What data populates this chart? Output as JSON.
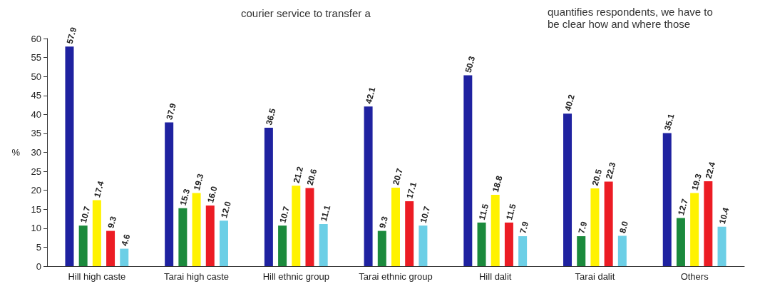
{
  "chart_data": {
    "type": "bar",
    "ylabel": "%",
    "categories": [
      "Hill high caste",
      "Tarai high caste",
      "Hill ethnic group",
      "Tarai ethnic group",
      "Hill dalit",
      "Tarai dalit",
      "Others"
    ],
    "series": [
      {
        "color": "#1f22a0",
        "values": [
          57.9,
          37.9,
          36.5,
          42.1,
          50.3,
          40.2,
          35.1
        ]
      },
      {
        "color": "#1b8a3c",
        "values": [
          10.7,
          15.3,
          10.7,
          9.3,
          11.5,
          7.9,
          12.7
        ]
      },
      {
        "color": "#fff200",
        "values": [
          17.4,
          19.3,
          21.2,
          20.7,
          18.8,
          20.5,
          19.3
        ]
      },
      {
        "color": "#ec1c24",
        "values": [
          9.3,
          16.0,
          20.6,
          17.1,
          11.5,
          22.3,
          22.4
        ]
      },
      {
        "color": "#6ccfe6",
        "values": [
          4.6,
          12.0,
          11.1,
          10.7,
          7.9,
          8.0,
          10.4
        ]
      }
    ],
    "value_labels": [
      [
        "57.9",
        "37.9",
        "36.5",
        "42.1",
        "50.3",
        "40.2",
        "35.1"
      ],
      [
        "10.7",
        "15.3",
        "10.7",
        "9.3",
        "11.5",
        "7.9",
        "12.7"
      ],
      [
        "17.4",
        "19.3",
        "21.2",
        "20.7",
        "18.8",
        "20.5",
        "19.3"
      ],
      [
        "9.3",
        "16.0",
        "20.6",
        "17.1",
        "11.5",
        "22.3",
        "22.4"
      ],
      [
        "4.6",
        "12.0",
        "11.1",
        "10.7",
        "7.9",
        "8.0",
        "10.4"
      ]
    ],
    "ylim": [
      0,
      60
    ],
    "yticks": [
      0,
      5,
      10,
      15,
      20,
      25,
      30,
      35,
      40,
      45,
      50,
      55,
      60
    ],
    "grid": false,
    "annotations": [
      "courier service to transfer a",
      "quantifies respondents, we have to be clear how and where those"
    ]
  }
}
